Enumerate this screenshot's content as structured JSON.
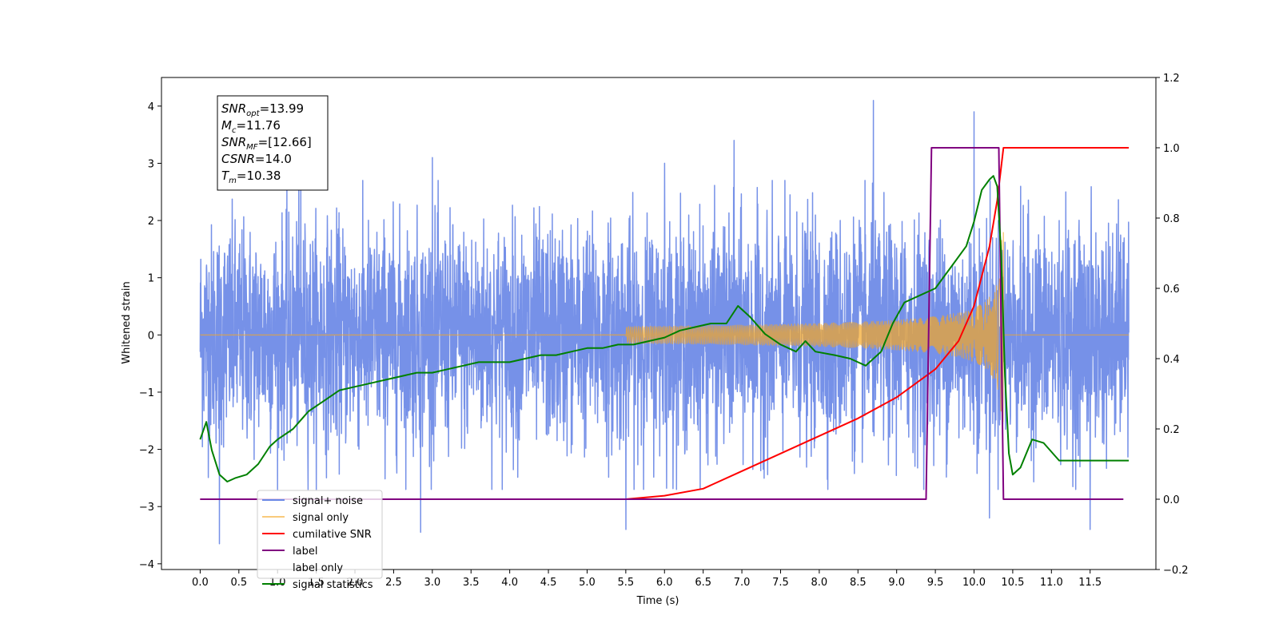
{
  "chart_data": {
    "type": "line",
    "xlabel": "Time (s)",
    "ylabel": "Whitened strain",
    "xlim": [
      -0.5,
      12.35
    ],
    "ylim": [
      -4.1,
      4.5
    ],
    "y2lim": [
      -0.2,
      1.2
    ],
    "xticks": [
      "0.0",
      "0.5",
      "1.0",
      "1.5",
      "2.0",
      "2.5",
      "3.0",
      "3.5",
      "4.0",
      "4.5",
      "5.0",
      "5.5",
      "6.0",
      "6.5",
      "7.0",
      "7.5",
      "8.0",
      "8.5",
      "9.0",
      "9.5",
      "10.0",
      "10.5",
      "11.0",
      "11.5"
    ],
    "yticks": [
      "−4",
      "−3",
      "−2",
      "−1",
      "0",
      "1",
      "2",
      "3",
      "4"
    ],
    "y2ticks": [
      "−0.2",
      "0.0",
      "0.2",
      "0.4",
      "0.6",
      "0.8",
      "1.0",
      "1.2"
    ],
    "legend_position": "lower-left",
    "annotation": {
      "lines": [
        {
          "main": "SNR",
          "sub": "opt",
          "value": "=13.99"
        },
        {
          "main": "M",
          "sub": "c",
          "value": "=11.76"
        },
        {
          "main": "SNR",
          "sub": "MF",
          "value": "=[12.66]"
        },
        {
          "main": "CSNR",
          "sub": "",
          "value": "=14.0"
        },
        {
          "main": "T",
          "sub": "m",
          "value": "=10.38"
        }
      ]
    },
    "series": [
      {
        "name": "signal+ noise",
        "color": "#6a88e6",
        "axis": "left",
        "kind": "noise",
        "x_range": [
          0.0,
          12.0
        ],
        "typical_band": [
          -1.5,
          1.5
        ],
        "peaks": [
          [
            1.3,
            2.6
          ],
          [
            3.0,
            3.1
          ],
          [
            5.5,
            -3.4
          ],
          [
            6.0,
            3.0
          ],
          [
            6.9,
            3.4
          ],
          [
            8.7,
            4.1
          ],
          [
            10.0,
            3.9
          ],
          [
            10.2,
            -3.2
          ],
          [
            11.5,
            -3.4
          ],
          [
            0.25,
            -3.65
          ],
          [
            2.85,
            -3.45
          ]
        ]
      },
      {
        "name": "signal only",
        "color": "#f5a623",
        "axis": "left",
        "kind": "chirp",
        "x_range": [
          0.0,
          12.0
        ],
        "merger": 10.38,
        "peak_amplitude": 1.8
      },
      {
        "name": "cumilative SNR",
        "color": "#ff0000",
        "axis": "right",
        "x": [
          0.0,
          5.5,
          6.0,
          6.5,
          7.0,
          7.5,
          8.0,
          8.5,
          9.0,
          9.5,
          9.8,
          10.0,
          10.2,
          10.3,
          10.38,
          12.0
        ],
        "y": [
          0.0,
          0.0,
          0.01,
          0.03,
          0.08,
          0.13,
          0.18,
          0.23,
          0.29,
          0.37,
          0.45,
          0.55,
          0.72,
          0.85,
          1.0,
          1.0
        ]
      },
      {
        "name": "label",
        "color": "#800080",
        "axis": "right",
        "x": [
          0.0,
          9.38,
          9.45,
          10.32,
          10.38,
          11.93
        ],
        "y": [
          0.0,
          0.0,
          1.0,
          1.0,
          0.0,
          0.0
        ]
      },
      {
        "name": "label only",
        "color": "#ffffff",
        "axis": "right",
        "x": [],
        "y": []
      },
      {
        "name": "signal statistics",
        "color": "#008000",
        "axis": "right",
        "x": [
          0.0,
          0.08,
          0.15,
          0.25,
          0.35,
          0.45,
          0.6,
          0.75,
          0.9,
          1.0,
          1.2,
          1.4,
          1.6,
          1.8,
          2.0,
          2.2,
          2.4,
          2.6,
          2.8,
          3.0,
          3.2,
          3.4,
          3.6,
          3.8,
          4.0,
          4.2,
          4.4,
          4.6,
          4.8,
          5.0,
          5.2,
          5.4,
          5.6,
          5.8,
          6.0,
          6.2,
          6.4,
          6.6,
          6.8,
          6.95,
          7.1,
          7.3,
          7.5,
          7.7,
          7.82,
          7.95,
          8.2,
          8.4,
          8.6,
          8.8,
          8.95,
          9.1,
          9.3,
          9.5,
          9.7,
          9.9,
          10.0,
          10.1,
          10.2,
          10.25,
          10.3,
          10.35,
          10.4,
          10.45,
          10.5,
          10.6,
          10.75,
          10.9,
          11.1,
          11.3,
          11.5,
          11.7,
          11.9,
          12.0
        ],
        "y": [
          0.17,
          0.22,
          0.14,
          0.07,
          0.05,
          0.06,
          0.07,
          0.1,
          0.15,
          0.17,
          0.2,
          0.25,
          0.28,
          0.31,
          0.32,
          0.33,
          0.34,
          0.35,
          0.36,
          0.36,
          0.37,
          0.38,
          0.39,
          0.39,
          0.39,
          0.4,
          0.41,
          0.41,
          0.42,
          0.43,
          0.43,
          0.44,
          0.44,
          0.45,
          0.46,
          0.48,
          0.49,
          0.5,
          0.5,
          0.55,
          0.52,
          0.47,
          0.44,
          0.42,
          0.45,
          0.42,
          0.41,
          0.4,
          0.38,
          0.42,
          0.5,
          0.56,
          0.58,
          0.6,
          0.66,
          0.72,
          0.79,
          0.88,
          0.91,
          0.92,
          0.89,
          0.7,
          0.35,
          0.13,
          0.07,
          0.09,
          0.17,
          0.16,
          0.11,
          0.11,
          0.11,
          0.11,
          0.11,
          0.11
        ]
      }
    ]
  }
}
